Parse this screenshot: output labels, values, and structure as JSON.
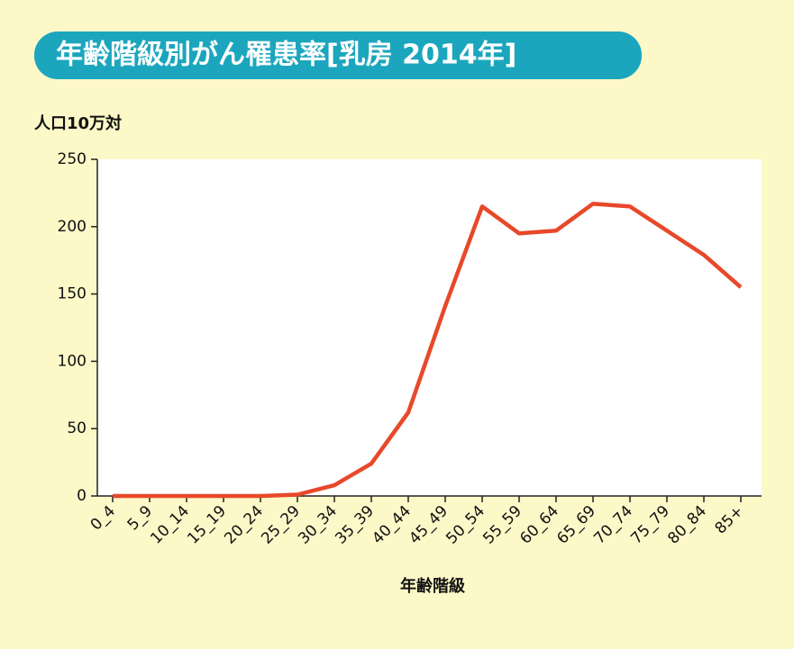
{
  "chart_data": {
    "type": "line",
    "title": "年齢階級別がん罹患率[乳房 2014年]",
    "y_label": "人口10万対",
    "x_label": "年齢階級",
    "categories": [
      "0_4",
      "5_9",
      "10_14",
      "15_19",
      "20_24",
      "25_29",
      "30_34",
      "35_39",
      "40_44",
      "45_49",
      "50_54",
      "55_59",
      "60_64",
      "65_69",
      "70_74",
      "75_79",
      "80_84",
      "85+"
    ],
    "series": [
      {
        "color": "#e8482a",
        "values": [
          0,
          0,
          0,
          0,
          0,
          1,
          8,
          24,
          62,
          141,
          215,
          195,
          197,
          217,
          215,
          197,
          179,
          155
        ]
      }
    ],
    "ylim": [
      0,
      250
    ],
    "yticks": [
      0,
      50,
      100,
      150,
      200,
      250
    ]
  }
}
